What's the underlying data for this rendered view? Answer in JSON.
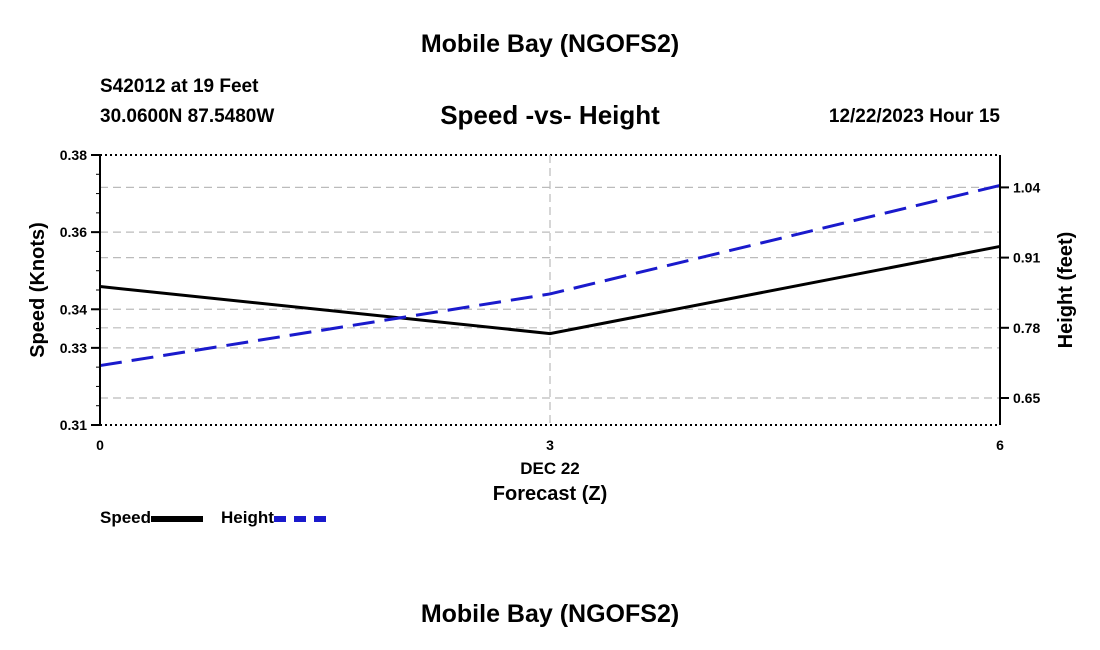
{
  "header": {
    "title": "Mobile Bay (NGOFS2)",
    "station": "S42012 at 19 Feet",
    "coords": "30.0600N  87.5480W",
    "subtitle": "Speed -vs- Height",
    "datetime": "12/22/2023 Hour 15"
  },
  "footer": {
    "title": "Mobile Bay (NGOFS2)"
  },
  "legend": {
    "speed": "Speed",
    "height": "Height"
  },
  "chart_data": {
    "type": "line",
    "title": "Speed -vs- Height",
    "xlabel": "Forecast (Z)",
    "xdate": "DEC 22",
    "ylabel": "Speed (Knots)",
    "y2label": "Height (feet)",
    "x": [
      0,
      3,
      6
    ],
    "xlim": [
      0,
      6
    ],
    "xticks": [
      "0",
      "3",
      "6"
    ],
    "ylim": [
      0.31,
      0.38
    ],
    "yticks": [
      0.31,
      0.33,
      0.34,
      0.36,
      0.38
    ],
    "ytick_labels": [
      "0.31",
      "0.33",
      "0.34",
      "0.36",
      "0.38"
    ],
    "y2lim": [
      0.6,
      1.1
    ],
    "y2ticks": [
      0.65,
      0.78,
      0.91,
      1.04
    ],
    "y2tick_labels": [
      "0.65",
      "0.78",
      "0.91",
      "1.04"
    ],
    "series": [
      {
        "name": "Speed",
        "axis": "left",
        "values": [
          0.3459,
          0.3337,
          0.3563
        ],
        "color": "#000000",
        "dash": "solid"
      },
      {
        "name": "Height",
        "axis": "right",
        "values": [
          0.7101,
          0.8427,
          1.0437
        ],
        "color": "#1a1acc",
        "dash": "dashed"
      }
    ],
    "grid": true,
    "legend": "bottom-left"
  }
}
